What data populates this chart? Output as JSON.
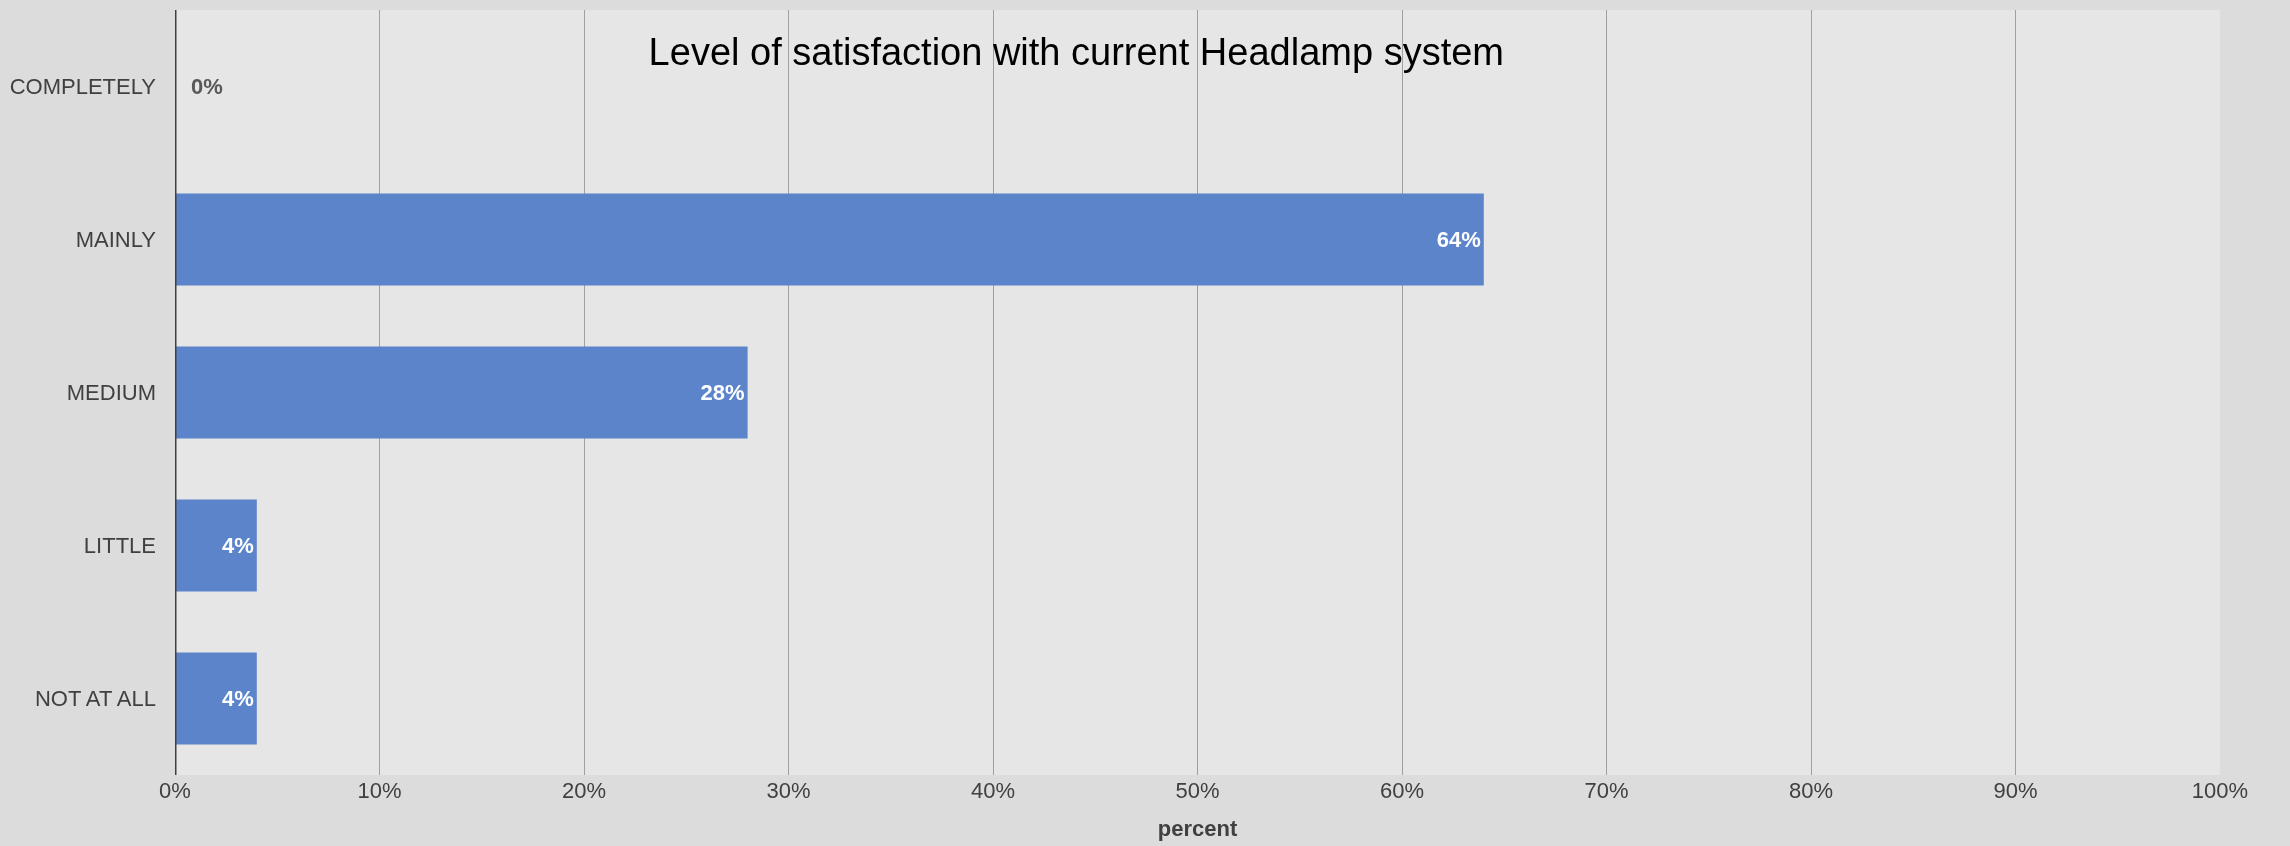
{
  "chart_data": {
    "type": "bar",
    "orientation": "horizontal",
    "title": "Level of satisfaction with current Headlamp system",
    "xlabel": "percent",
    "categories": [
      "COMPLETELY",
      "MAINLY",
      "MEDIUM",
      "LITTLE",
      "NOT AT ALL"
    ],
    "values": [
      0,
      64,
      28,
      4,
      4
    ],
    "value_labels": [
      "0%",
      "64%",
      "28%",
      "4%",
      "4%"
    ],
    "color": "#5b84cb",
    "xlim": [
      0,
      100
    ],
    "xticks": [
      {
        "value": 0,
        "label": "0%"
      },
      {
        "value": 10,
        "label": "10%"
      },
      {
        "value": 20,
        "label": "20%"
      },
      {
        "value": 30,
        "label": "30%"
      },
      {
        "value": 40,
        "label": "40%"
      },
      {
        "value": 50,
        "label": "50%"
      },
      {
        "value": 60,
        "label": "60%"
      },
      {
        "value": 70,
        "label": "70%"
      },
      {
        "value": 80,
        "label": "80%"
      },
      {
        "value": 90,
        "label": "90%"
      },
      {
        "value": 100,
        "label": "100%"
      }
    ],
    "grid": "x",
    "legend": false
  }
}
